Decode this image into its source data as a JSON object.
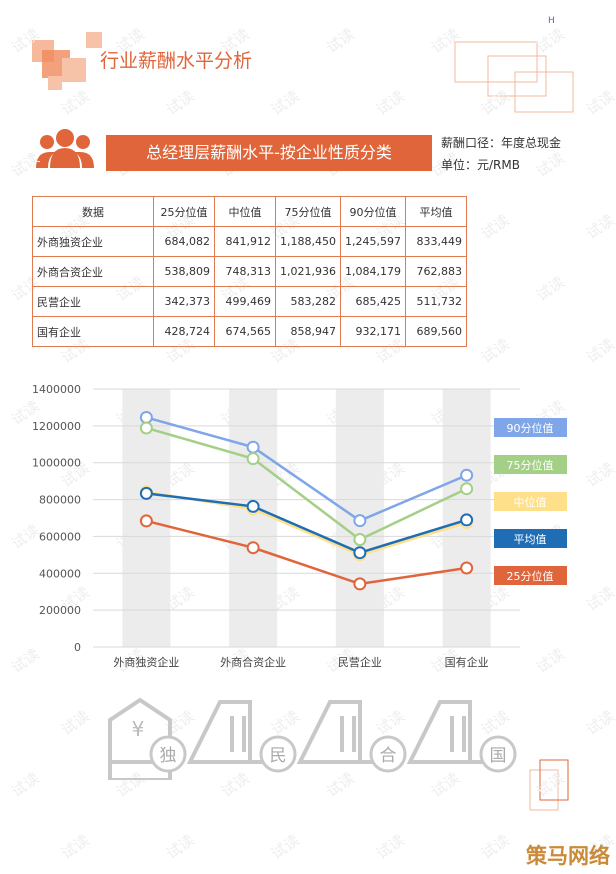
{
  "header": {
    "title": "行业薪酬水平分析",
    "corner_mark": "H",
    "banner": "总经理层薪酬水平-按企业性质分类",
    "notes": [
      "薪酬口径：年度总现金",
      "单位：元/RMB"
    ]
  },
  "table": {
    "header": [
      "数据",
      "25分位值",
      "中位值",
      "75分位值",
      "90分位值",
      "平均值"
    ],
    "rows": [
      [
        "外商独资企业",
        "684,082",
        "841,912",
        "1,188,450",
        "1,245,597",
        "833,449"
      ],
      [
        "外商合资企业",
        "538,809",
        "748,313",
        "1,021,936",
        "1,084,179",
        "762,883"
      ],
      [
        "民营企业",
        "342,373",
        "499,469",
        "583,282",
        "685,425",
        "511,732"
      ],
      [
        "国有企业",
        "428,724",
        "674,565",
        "858,947",
        "932,171",
        "689,560"
      ]
    ]
  },
  "chart_data": {
    "type": "line",
    "categories": [
      "外商独资企业",
      "外商合资企业",
      "民营企业",
      "国有企业"
    ],
    "series": [
      {
        "name": "90分位值",
        "color": "#7ea6e8",
        "values": [
          1245597,
          1084179,
          685425,
          932171
        ]
      },
      {
        "name": "75分位值",
        "color": "#a3cf87",
        "values": [
          1188450,
          1021936,
          583282,
          858947
        ]
      },
      {
        "name": "中位值",
        "color": "#ffe08a",
        "values": [
          841912,
          748313,
          499469,
          674565
        ]
      },
      {
        "name": "平均值",
        "color": "#1f6eb5",
        "values": [
          833449,
          762883,
          511732,
          689560
        ]
      },
      {
        "name": "25分位值",
        "color": "#e0653a",
        "values": [
          684082,
          538809,
          342373,
          428724
        ]
      }
    ],
    "ylim": [
      0,
      1400000
    ],
    "yticks": [
      0,
      200000,
      400000,
      600000,
      800000,
      1000000,
      1200000,
      1400000
    ],
    "grid": true,
    "legend": "right"
  },
  "icons": {
    "symbol": "¥",
    "labels": [
      "独",
      "民",
      "合",
      "国"
    ]
  },
  "watermark": "试读",
  "brand": "策马网络"
}
